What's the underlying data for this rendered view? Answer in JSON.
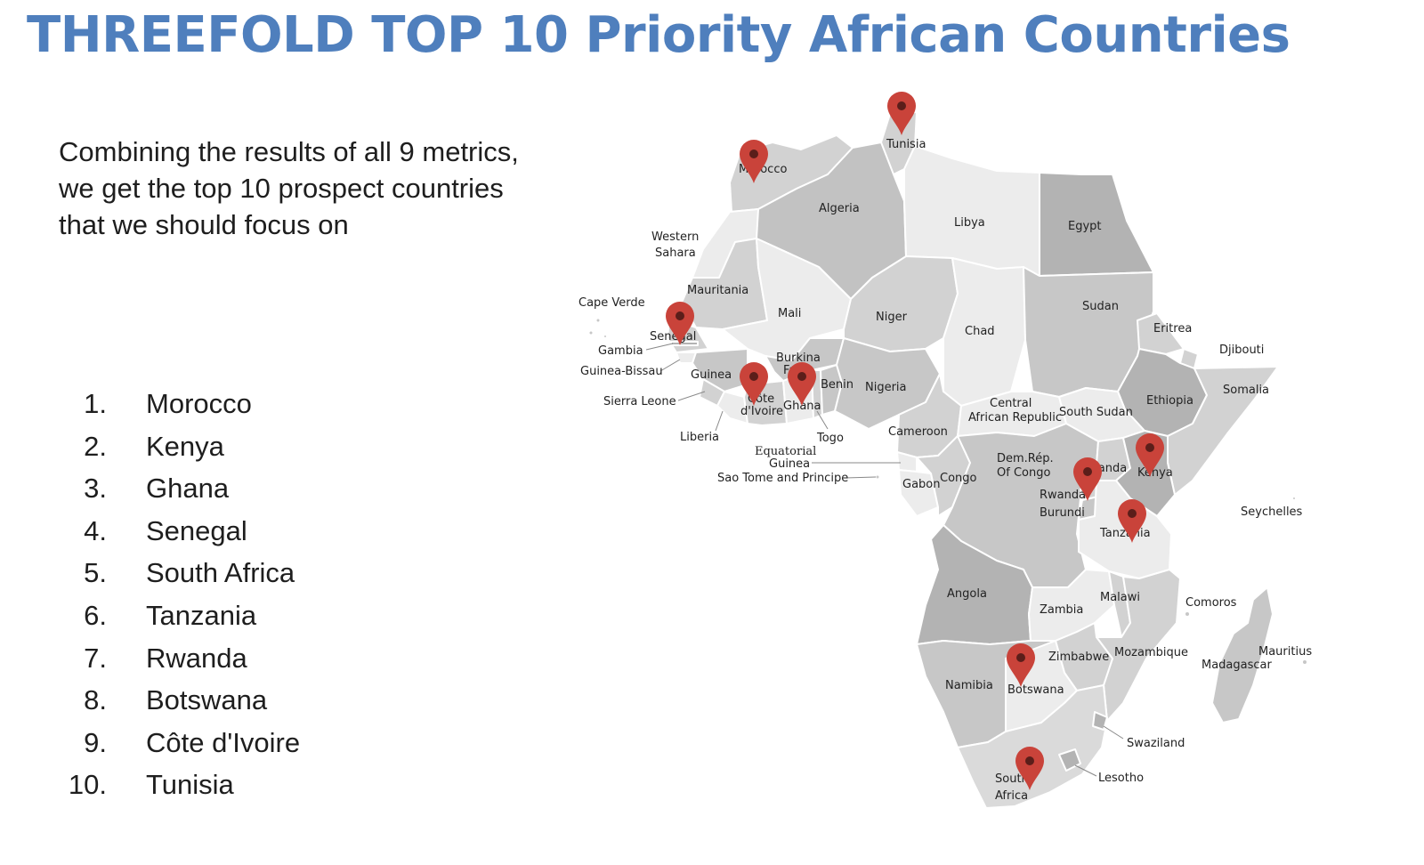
{
  "title": "THREEFOLD TOP 10 Priority African Countries",
  "intro_lines": [
    "Combining the results of all 9 metrics,",
    "we get the top 10 prospect countries",
    "that we should focus on"
  ],
  "priority_list": [
    {
      "num": "1.",
      "name": "Morocco"
    },
    {
      "num": "2.",
      "name": "Kenya"
    },
    {
      "num": "3.",
      "name": "Ghana"
    },
    {
      "num": "4.",
      "name": "Senegal"
    },
    {
      "num": "5.",
      "name": "South Africa"
    },
    {
      "num": "6.",
      "name": "Tanzania"
    },
    {
      "num": "7.",
      "name": "Rwanda"
    },
    {
      "num": "8.",
      "name": "Botswana"
    },
    {
      "num": "9.",
      "name": "Côte d'Ivoire"
    },
    {
      "num": "10.",
      "name": "Tunisia"
    }
  ],
  "colors": {
    "title": "#4f7fbd",
    "marker": "#c9433a",
    "marker_dot": "#5b1e1a",
    "land_light": "#ececec",
    "land_mid": "#d2d2d2",
    "land_dark": "#b3b3b3",
    "border": "#ffffff"
  },
  "map": {
    "country_labels": {
      "tunisia": "Tunisia",
      "morocco": "Morocco",
      "algeria": "Algeria",
      "libya": "Libya",
      "egypt": "Egypt",
      "western_sahara_1": "Western",
      "western_sahara_2": "Sahara",
      "mauritania": "Mauritania",
      "cape_verde": "Cape Verde",
      "mali": "Mali",
      "niger": "Niger",
      "chad": "Chad",
      "sudan": "Sudan",
      "eritrea": "Eritrea",
      "djibouti": "Djibouti",
      "senegal": "Senegal",
      "gambia": "Gambia",
      "guinea_bissau": "Guinea-Bissau",
      "guinea": "Guinea",
      "burkina_1": "Burkina",
      "burkina_2": "Faso",
      "benin": "Benin",
      "nigeria": "Nigeria",
      "ethiopia": "Ethiopia",
      "somalia": "Somalia",
      "sierra_leone": "Sierra Leone",
      "cote_1": "Côte",
      "cote_2": "d'Ivoire",
      "ghana": "Ghana",
      "car_1": "Central",
      "car_2": "African Republic",
      "south_sudan": "South Sudan",
      "liberia": "Liberia",
      "togo": "Togo",
      "cameroon": "Cameroon",
      "eq_guinea_1": "Equatorial",
      "eq_guinea_2": "Guinea",
      "sao_tome": "Sao Tome and Principe",
      "drc_1": "Dem.Rép.",
      "drc_2": "Of Congo",
      "uganda": "Uganda",
      "kenya": "Kenya",
      "gabon": "Gabon",
      "congo": "Congo",
      "rwanda": "Rwanda",
      "burundi": "Burundi",
      "tanzania": "Tanzania",
      "seychelles": "Seychelles",
      "angola": "Angola",
      "malawi": "Malawi",
      "zambia": "Zambia",
      "comoros": "Comoros",
      "mauritius": "Mauritius",
      "madagascar": "Madagascar",
      "zimbabwe": "Zimbabwe",
      "mozambique": "Mozambique",
      "namibia": "Namibia",
      "botswana": "Botswana",
      "swaziland": "Swaziland",
      "lesotho": "Lesotho",
      "south_africa_1": "South",
      "south_africa_2": "Africa"
    },
    "markers": [
      {
        "country": "Tunisia",
        "icon": "map-pin-icon"
      },
      {
        "country": "Morocco",
        "icon": "map-pin-icon"
      },
      {
        "country": "Senegal",
        "icon": "map-pin-icon"
      },
      {
        "country": "Côte d'Ivoire",
        "icon": "map-pin-icon"
      },
      {
        "country": "Ghana",
        "icon": "map-pin-icon"
      },
      {
        "country": "Kenya",
        "icon": "map-pin-icon"
      },
      {
        "country": "Rwanda",
        "icon": "map-pin-icon"
      },
      {
        "country": "Tanzania",
        "icon": "map-pin-icon"
      },
      {
        "country": "Botswana",
        "icon": "map-pin-icon"
      },
      {
        "country": "South Africa",
        "icon": "map-pin-icon"
      }
    ]
  }
}
